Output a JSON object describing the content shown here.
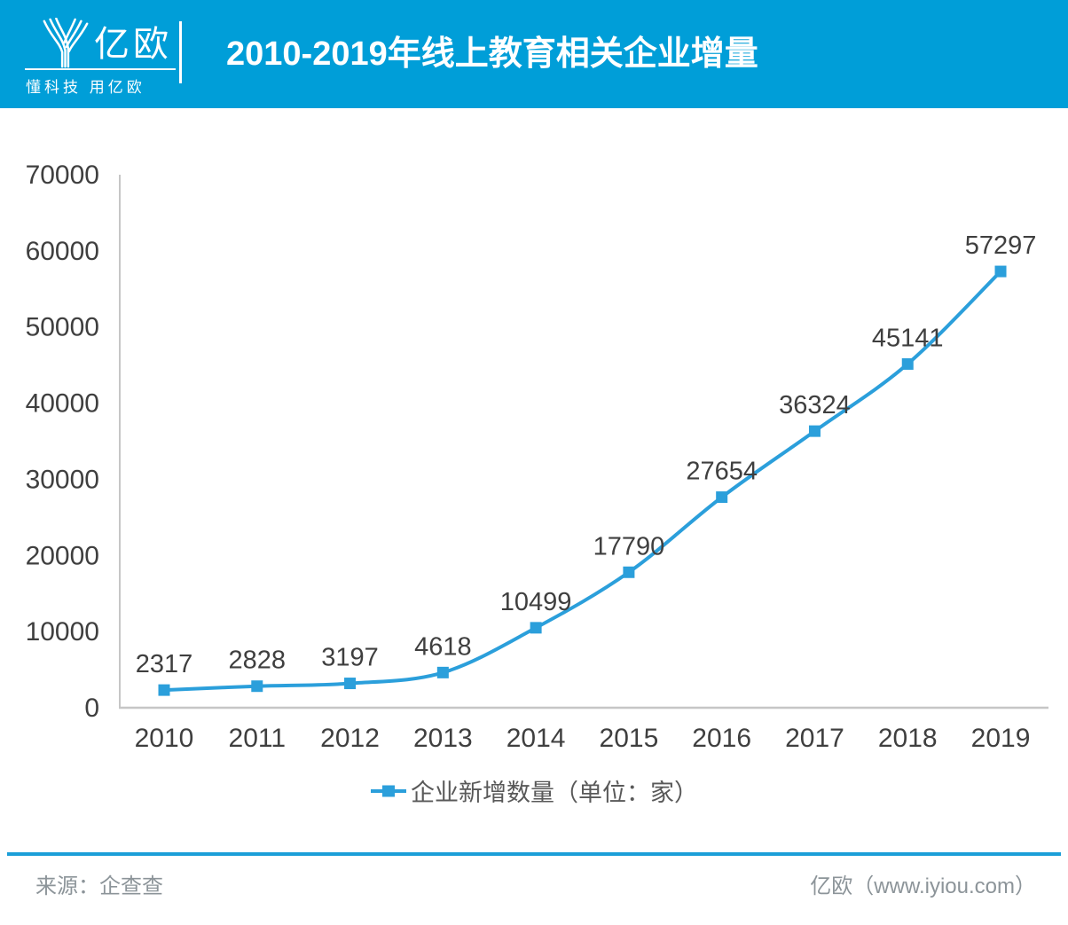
{
  "header": {
    "logo_text": "亿欧",
    "logo_tagline": "懂科技 用亿欧",
    "title": "2010-2019年线上教育相关企业增量"
  },
  "colors": {
    "header_bg": "#009ED8",
    "series": "#2B9FDB",
    "axis": "#C6C6C6",
    "label_text": "#3F3F3F",
    "legend_text": "#595959",
    "footer_text": "#8C9499",
    "footer_rule": "#1B9FD8"
  },
  "chart_data": {
    "type": "line",
    "title": "2010-2019年线上教育相关企业增量",
    "categories": [
      "2010",
      "2011",
      "2012",
      "2013",
      "2014",
      "2015",
      "2016",
      "2017",
      "2018",
      "2019"
    ],
    "series": [
      {
        "name": "企业新增数量（单位：家）",
        "values": [
          2317,
          2828,
          3197,
          4618,
          10499,
          17790,
          27654,
          36324,
          45141,
          57297
        ]
      }
    ],
    "ylim": [
      0,
      70000
    ],
    "ytick_step": 10000,
    "yticks": [
      0,
      10000,
      20000,
      30000,
      40000,
      50000,
      60000,
      70000
    ],
    "grid": false,
    "marker": "square",
    "legend_position": "bottom",
    "data_labels": true
  },
  "footer": {
    "source": "来源：企查查",
    "brand": "亿欧（www.iyiou.com）"
  }
}
